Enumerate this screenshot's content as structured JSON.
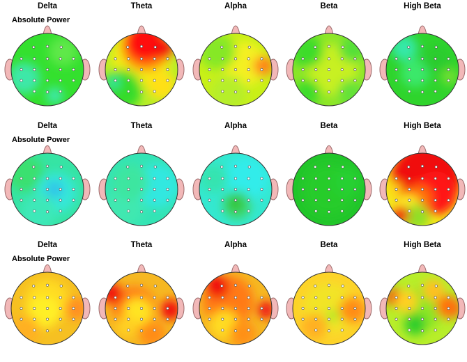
{
  "rows": [
    {
      "label": "Absolute Power",
      "bands": [
        {
          "name": "Delta",
          "base": "#34e02e",
          "blobs": [
            [
              "#3ee8a8",
              0.18,
              0.62,
              0.22
            ],
            [
              "#5ee84a",
              0.72,
              0.25,
              0.2
            ],
            [
              "#3ee8a8",
              0.6,
              0.86,
              0.12
            ]
          ]
        },
        {
          "name": "Theta",
          "base": "#b6ee2a",
          "blobs": [
            [
              "#f2ec18",
              0.5,
              0.32,
              0.42
            ],
            [
              "#ff8c10",
              0.56,
              0.18,
              0.34
            ],
            [
              "#ff1010",
              0.55,
              0.13,
              0.27
            ],
            [
              "#f40c0c",
              0.8,
              0.22,
              0.14
            ],
            [
              "#36dc2a",
              0.22,
              0.78,
              0.28
            ],
            [
              "#ffe018",
              0.78,
              0.72,
              0.2
            ],
            [
              "#34e8a8",
              0.12,
              0.68,
              0.08
            ]
          ]
        },
        {
          "name": "Alpha",
          "base": "#c9f018",
          "blobs": [
            [
              "#f4f020",
              0.62,
              0.42,
              0.3
            ],
            [
              "#ff9020",
              0.88,
              0.45,
              0.14
            ],
            [
              "#ff7a10",
              0.92,
              0.44,
              0.08
            ],
            [
              "#86e828",
              0.25,
              0.25,
              0.25
            ],
            [
              "#b6ee2a",
              0.4,
              0.82,
              0.25
            ]
          ]
        },
        {
          "name": "Beta",
          "base": "#8ce628",
          "blobs": [
            [
              "#c8f020",
              0.55,
              0.5,
              0.35
            ],
            [
              "#3cdc2c",
              0.2,
              0.25,
              0.22
            ],
            [
              "#3cdc2c",
              0.2,
              0.82,
              0.18
            ],
            [
              "#54e038",
              0.82,
              0.22,
              0.18
            ],
            [
              "#64e238",
              0.8,
              0.82,
              0.18
            ]
          ]
        },
        {
          "name": "High Beta",
          "base": "#2fd42c",
          "blobs": [
            [
              "#34e8a8",
              0.25,
              0.2,
              0.18
            ],
            [
              "#3be86a",
              0.4,
              0.55,
              0.2
            ],
            [
              "#72e032",
              0.88,
              0.6,
              0.12
            ],
            [
              "#2ccc2e",
              0.7,
              0.35,
              0.2
            ]
          ]
        }
      ]
    },
    {
      "label": "Absolute Power",
      "bands": [
        {
          "name": "Delta",
          "base": "#36e4a4",
          "blobs": [
            [
              "#3ae070",
              0.2,
              0.28,
              0.25
            ],
            [
              "#34e8d8",
              0.62,
              0.55,
              0.28
            ],
            [
              "#30c4e8",
              0.6,
              0.5,
              0.12
            ],
            [
              "#3ee8b8",
              0.38,
              0.82,
              0.25
            ]
          ]
        },
        {
          "name": "Theta",
          "base": "#34e4b4",
          "blobs": [
            [
              "#30e8e0",
              0.72,
              0.45,
              0.3
            ],
            [
              "#40e8b0",
              0.25,
              0.75,
              0.28
            ],
            [
              "#3ee6a0",
              0.35,
              0.4,
              0.25
            ]
          ]
        },
        {
          "name": "Alpha",
          "base": "#34e8d0",
          "blobs": [
            [
              "#30ecea",
              0.65,
              0.35,
              0.3
            ],
            [
              "#3ed870",
              0.52,
              0.72,
              0.2
            ],
            [
              "#30c22c",
              0.5,
              0.7,
              0.1
            ],
            [
              "#34e4b0",
              0.2,
              0.35,
              0.2
            ]
          ]
        },
        {
          "name": "Beta",
          "base": "#22c62a",
          "blobs": [
            [
              "#26cc2c",
              0.5,
              0.5,
              0.35
            ],
            [
              "#28d030",
              0.75,
              0.4,
              0.2
            ]
          ]
        },
        {
          "name": "High Beta",
          "base": "#f3ea1a",
          "blobs": [
            [
              "#f01010",
              0.55,
              0.35,
              0.48
            ],
            [
              "#ff1212",
              0.68,
              0.55,
              0.3
            ],
            [
              "#ff7010",
              0.45,
              0.62,
              0.18
            ],
            [
              "#fff028",
              0.3,
              0.75,
              0.18
            ],
            [
              "#90e028",
              0.42,
              0.88,
              0.18
            ],
            [
              "#f01010",
              0.2,
              0.85,
              0.12
            ],
            [
              "#ffd418",
              0.12,
              0.5,
              0.1
            ]
          ]
        }
      ]
    },
    {
      "label": "Absolute Power",
      "bands": [
        {
          "name": "Delta",
          "base": "#f6c022",
          "blobs": [
            [
              "#ffdc20",
              0.5,
              0.4,
              0.3
            ],
            [
              "#fff028",
              0.45,
              0.55,
              0.22
            ],
            [
              "#f21010",
              0.95,
              0.5,
              0.11
            ],
            [
              "#ff9020",
              0.9,
              0.5,
              0.16
            ],
            [
              "#ffb020",
              0.2,
              0.8,
              0.2
            ]
          ]
        },
        {
          "name": "Theta",
          "base": "#f6b822",
          "blobs": [
            [
              "#ff7a14",
              0.4,
              0.5,
              0.3
            ],
            [
              "#f01010",
              0.1,
              0.3,
              0.14
            ],
            [
              "#f01010",
              0.9,
              0.52,
              0.14
            ],
            [
              "#ffe424",
              0.45,
              0.55,
              0.2
            ],
            [
              "#ff8c14",
              0.65,
              0.85,
              0.18
            ],
            [
              "#ffd020",
              0.3,
              0.75,
              0.15
            ]
          ]
        },
        {
          "name": "Alpha",
          "base": "#f6b822",
          "blobs": [
            [
              "#ff7a14",
              0.4,
              0.4,
              0.35
            ],
            [
              "#f01010",
              0.25,
              0.2,
              0.16
            ],
            [
              "#ee1212",
              0.92,
              0.52,
              0.12
            ],
            [
              "#ffdc20",
              0.35,
              0.72,
              0.2
            ],
            [
              "#ff9018",
              0.6,
              0.85,
              0.18
            ]
          ]
        },
        {
          "name": "Beta",
          "base": "#fdd32a",
          "blobs": [
            [
              "#f2e428",
              0.5,
              0.5,
              0.35
            ],
            [
              "#f01010",
              0.88,
              0.55,
              0.12
            ],
            [
              "#ff8c18",
              0.82,
              0.52,
              0.18
            ],
            [
              "#9cee28",
              0.55,
              0.6,
              0.08
            ],
            [
              "#ffb020",
              0.3,
              0.75,
              0.18
            ]
          ]
        },
        {
          "name": "High Beta",
          "base": "#b8ee2a",
          "blobs": [
            [
              "#8ce628",
              0.5,
              0.5,
              0.3
            ],
            [
              "#f01010",
              0.92,
              0.5,
              0.12
            ],
            [
              "#ff7010",
              0.85,
              0.48,
              0.16
            ],
            [
              "#f22010",
              0.12,
              0.35,
              0.12
            ],
            [
              "#ffd020",
              0.28,
              0.4,
              0.16
            ],
            [
              "#2ece2c",
              0.4,
              0.72,
              0.15
            ],
            [
              "#ffc020",
              0.65,
              0.25,
              0.15
            ]
          ]
        }
      ]
    }
  ]
}
